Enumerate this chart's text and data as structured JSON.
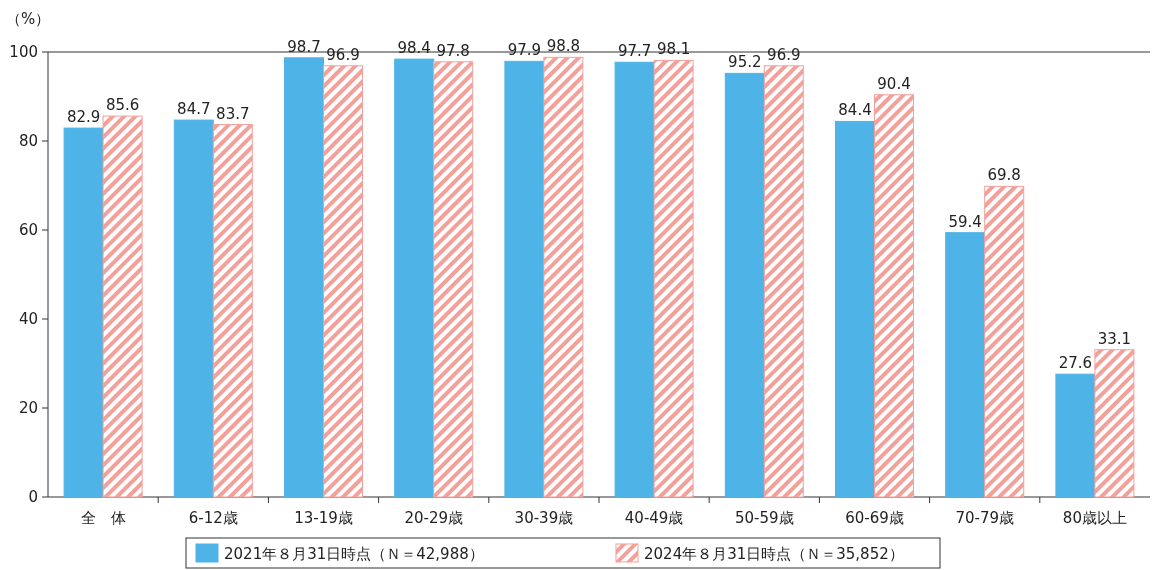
{
  "chart_data": {
    "type": "bar",
    "ylabel": "（%）",
    "categories": [
      "全　体",
      "6‐12歳",
      "13-19歳",
      "20-29歳",
      "30-39歳",
      "40-49歳",
      "50-59歳",
      "60-69歳",
      "70-79歳",
      "80歳以上"
    ],
    "series": [
      {
        "name": "2021年８月31日時点（Ｎ＝42,988）",
        "color": "#4eb3e6",
        "values": [
          82.9,
          84.7,
          98.7,
          98.4,
          97.9,
          97.7,
          95.2,
          84.4,
          59.4,
          27.6
        ]
      },
      {
        "name": "2024年８月31日時点（Ｎ＝35,852）",
        "color": "#f4a09a",
        "values": [
          85.6,
          83.7,
          96.9,
          97.8,
          98.8,
          98.1,
          96.9,
          90.4,
          69.8,
          33.1
        ]
      }
    ],
    "ylim": [
      0,
      100
    ],
    "yticks": [
      0,
      20,
      40,
      60,
      80,
      100
    ],
    "data_labels": true,
    "legend": "bottom"
  }
}
